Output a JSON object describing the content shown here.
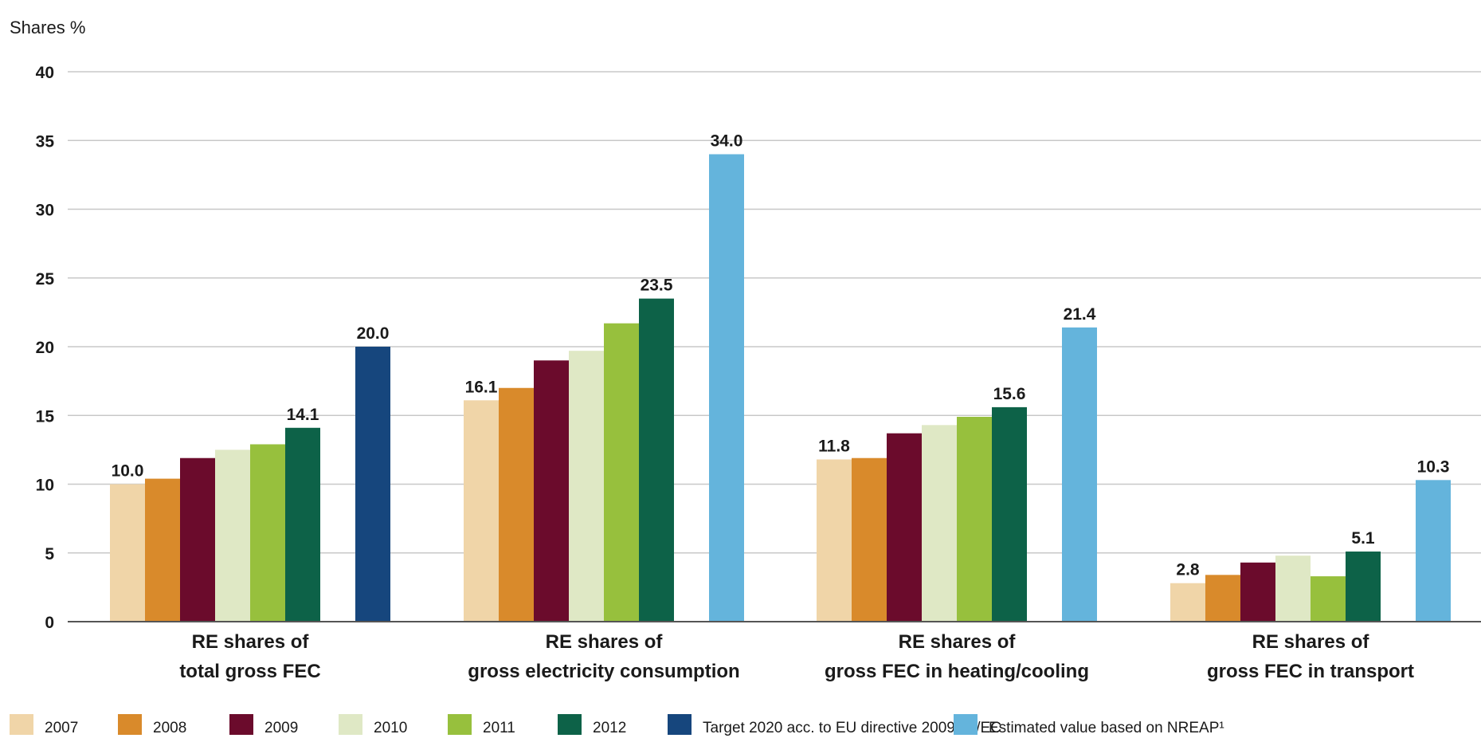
{
  "chart_data": {
    "type": "bar",
    "ylabel": "Shares %",
    "ylim": [
      0,
      40
    ],
    "yticks": [
      0,
      5,
      10,
      15,
      20,
      25,
      30,
      35,
      40
    ],
    "grid": true,
    "legend_position": "bottom",
    "categories": [
      {
        "line1": "RE shares of",
        "line2": "total gross FEC"
      },
      {
        "line1": "RE shares of",
        "line2": "gross electricity consumption"
      },
      {
        "line1": "RE shares of",
        "line2": "gross FEC in heating/cooling"
      },
      {
        "line1": "RE shares of",
        "line2": "gross FEC in transport"
      }
    ],
    "series": [
      {
        "name": "2007",
        "color": "#f0d5a8",
        "values": [
          10.0,
          16.1,
          11.8,
          2.8
        ],
        "labels": [
          "10.0",
          "16.1",
          "11.8",
          "2.8"
        ]
      },
      {
        "name": "2008",
        "color": "#d98a2b",
        "values": [
          10.4,
          17.0,
          11.9,
          3.4
        ],
        "labels": [
          null,
          null,
          null,
          null
        ]
      },
      {
        "name": "2009",
        "color": "#6b0b2c",
        "values": [
          11.9,
          19.0,
          13.7,
          4.3
        ],
        "labels": [
          null,
          null,
          null,
          null
        ]
      },
      {
        "name": "2010",
        "color": "#dfe8c5",
        "values": [
          12.5,
          19.7,
          14.3,
          4.8
        ],
        "labels": [
          null,
          null,
          null,
          null
        ]
      },
      {
        "name": "2011",
        "color": "#97c03d",
        "values": [
          12.9,
          21.7,
          14.9,
          3.3
        ],
        "labels": [
          null,
          null,
          null,
          null
        ]
      },
      {
        "name": "2012",
        "color": "#0d6248",
        "values": [
          14.1,
          23.5,
          15.6,
          5.1
        ],
        "labels": [
          "14.1",
          "23.5",
          "15.6",
          "5.1"
        ]
      },
      {
        "name": "Target 2020 acc. to EU directive 2009/28/EC",
        "color": "#16467d",
        "values": [
          20.0,
          null,
          null,
          null
        ],
        "labels": [
          "20.0",
          null,
          null,
          null
        ]
      },
      {
        "name": "Estimated value based on  NREAP¹",
        "color": "#64b4dc",
        "values": [
          null,
          34.0,
          21.4,
          10.3
        ],
        "labels": [
          null,
          "34.0",
          "21.4",
          "10.3"
        ]
      }
    ]
  }
}
